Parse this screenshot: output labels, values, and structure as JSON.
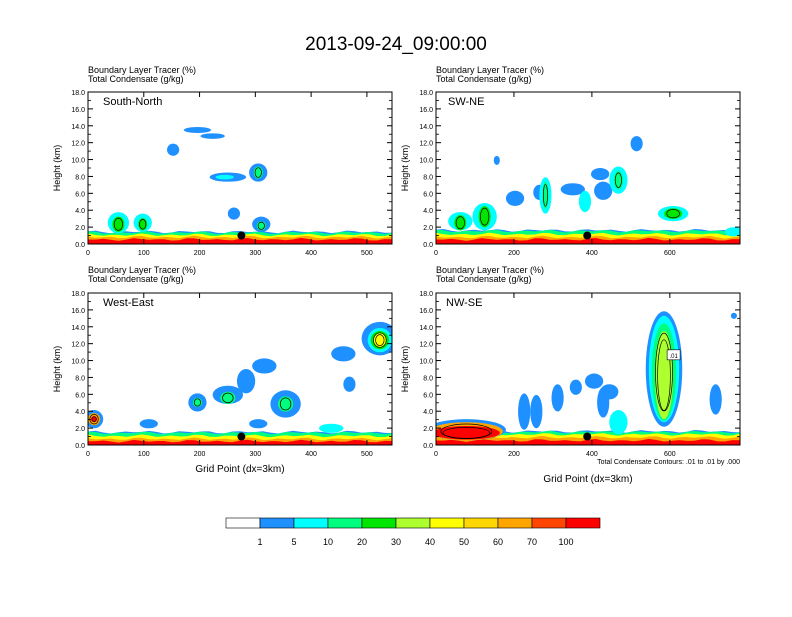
{
  "title": "2013-09-24_09:00:00",
  "colors": {
    "levels": [
      "#ffffff",
      "#1e90ff",
      "#00ffff",
      "#00ff7f",
      "#00e600",
      "#adff2f",
      "#ffff00",
      "#ffd700",
      "#ffa500",
      "#ff4500",
      "#ff0000"
    ],
    "contour": "#000000",
    "marker": "#000000"
  },
  "chart_data": [
    {
      "type": "heatmap",
      "panel": "South-North",
      "left_label_1": "Boundary Layer Tracer   (%)",
      "left_label_2": "Total Condensate   (g/kg)",
      "ylabel": "Height (km)",
      "xlabel": "",
      "xlim": [
        0,
        545
      ],
      "ylim": [
        0,
        18
      ],
      "xticks": [
        "0",
        "100",
        "200",
        "300",
        "400",
        "500"
      ],
      "yticks": [
        "0.0",
        "2.0",
        "4.0",
        "6.0",
        "8.0",
        "10.0",
        "12.0",
        "14.0",
        "16.0",
        "18.0"
      ],
      "marker_x": 275,
      "marker_y": 1.0
    },
    {
      "type": "heatmap",
      "panel": "SW-NE",
      "left_label_1": "Boundary Layer Tracer   (%)",
      "left_label_2": "Total Condensate   (g/kg)",
      "ylabel": "Height (km)",
      "xlabel": "",
      "xlim": [
        0,
        780
      ],
      "ylim": [
        0,
        18
      ],
      "xticks": [
        "0",
        "200",
        "400",
        "600"
      ],
      "yticks": [
        "0.0",
        "2.0",
        "4.0",
        "6.0",
        "8.0",
        "10.0",
        "12.0",
        "14.0",
        "16.0",
        "18.0"
      ],
      "marker_x": 388,
      "marker_y": 1.0
    },
    {
      "type": "heatmap",
      "panel": "West-East",
      "left_label_1": "Boundary Layer Tracer   (%)",
      "left_label_2": "Total Condensate   (g/kg)",
      "ylabel": "Height (km)",
      "xlabel": "Grid Point (dx=3km)",
      "xlim": [
        0,
        545
      ],
      "ylim": [
        0,
        18
      ],
      "xticks": [
        "0",
        "100",
        "200",
        "300",
        "400",
        "500"
      ],
      "yticks": [
        "0.0",
        "2.0",
        "4.0",
        "6.0",
        "8.0",
        "10.0",
        "12.0",
        "14.0",
        "16.0",
        "18.0"
      ],
      "marker_x": 275,
      "marker_y": 1.0
    },
    {
      "type": "heatmap",
      "panel": "NW-SE",
      "left_label_1": "Boundary Layer Tracer   (%)",
      "left_label_2": "Total Condensate   (g/kg)",
      "ylabel": "Height (km)",
      "xlabel": "Grid Point (dx=3km)",
      "xlim": [
        0,
        780
      ],
      "ylim": [
        0,
        18
      ],
      "xticks": [
        "0",
        "200",
        "400",
        "600"
      ],
      "yticks": [
        "0.0",
        "2.0",
        "4.0",
        "6.0",
        "8.0",
        "10.0",
        "12.0",
        "14.0",
        "16.0",
        "18.0"
      ],
      "marker_x": 388,
      "marker_y": 1.0,
      "contour_note": "Total Condensate Contours: .01 to .01 by .000",
      "contour_label": ".01"
    }
  ],
  "colorbar": {
    "labels": [
      "1",
      "5",
      "10",
      "20",
      "30",
      "40",
      "50",
      "60",
      "70",
      "100"
    ]
  }
}
